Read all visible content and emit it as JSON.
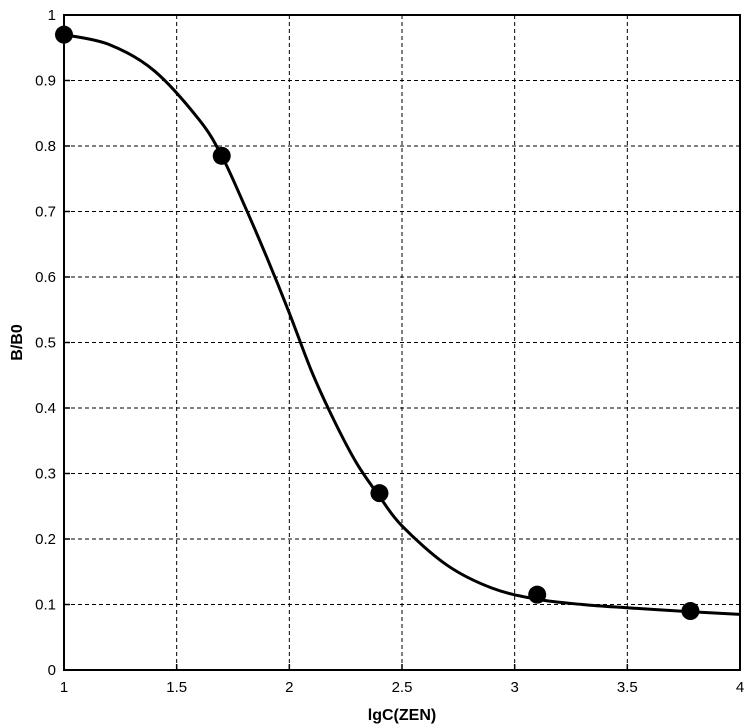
{
  "chart_data": {
    "type": "scatter",
    "title": "",
    "xlabel": "lgC(ZEN)",
    "ylabel": "B/B0",
    "xlim": [
      1,
      4
    ],
    "ylim": [
      0,
      1
    ],
    "grid": true,
    "x_ticks": [
      "1",
      "1.5",
      "2",
      "2.5",
      "3",
      "3.5",
      "4"
    ],
    "y_ticks": [
      "0",
      "0.1",
      "0.2",
      "0.3",
      "0.4",
      "0.5",
      "0.6",
      "0.7",
      "0.8",
      "0.9",
      "1"
    ],
    "series": [
      {
        "marker": "circle",
        "x": [
          1.0,
          1.7,
          2.4,
          3.1,
          3.78
        ],
        "y": [
          0.97,
          0.785,
          0.27,
          0.115,
          0.09
        ]
      },
      {
        "style": "line",
        "x": [
          1.0,
          1.2,
          1.4,
          1.6,
          1.7,
          1.8,
          1.9,
          2.0,
          2.1,
          2.2,
          2.3,
          2.4,
          2.5,
          2.7,
          2.9,
          3.1,
          3.3,
          3.5,
          3.78,
          4.0
        ],
        "y": [
          0.97,
          0.955,
          0.915,
          0.84,
          0.785,
          0.71,
          0.63,
          0.545,
          0.455,
          0.38,
          0.315,
          0.265,
          0.22,
          0.16,
          0.125,
          0.108,
          0.1,
          0.095,
          0.089,
          0.085
        ]
      }
    ]
  }
}
